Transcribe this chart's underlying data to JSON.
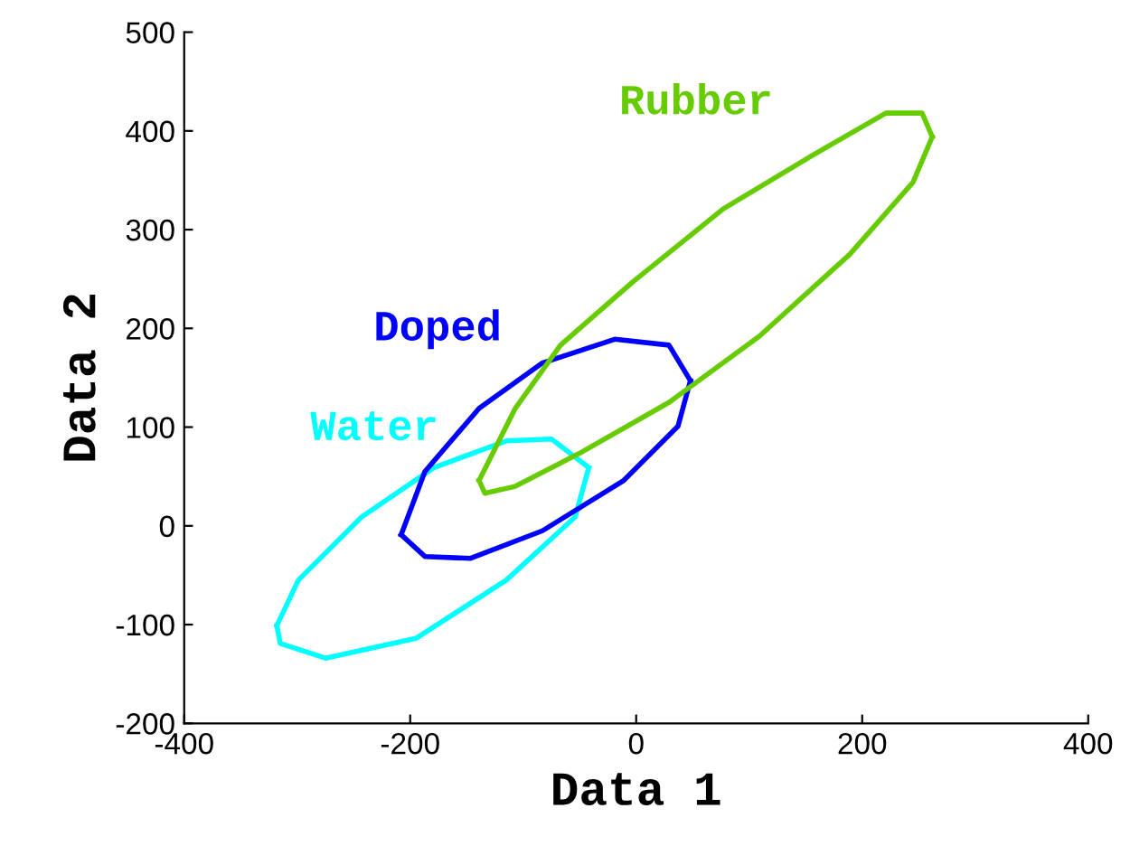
{
  "chart_data": {
    "type": "line",
    "xlabel": "Data 1",
    "ylabel": "Data 2",
    "xlim": [
      -400,
      400
    ],
    "ylim": [
      -200,
      500
    ],
    "xticks": [
      -400,
      -200,
      0,
      200,
      400
    ],
    "yticks": [
      -200,
      -100,
      0,
      100,
      200,
      300,
      400,
      500
    ],
    "grid": false,
    "legend": false,
    "marker": "none",
    "line_style": "solid",
    "series": [
      {
        "name": "Water",
        "color": "#00ffff",
        "x": [
          -318,
          -299,
          -243,
          -179,
          -115,
          -75,
          -42
        ],
        "values": [
          -101,
          -55,
          9,
          59,
          86,
          88,
          59
        ]
      },
      {
        "color": "#00ffff",
        "x": [
          -318,
          -315,
          -275,
          -195,
          -115,
          -54,
          -42
        ],
        "values": [
          -101,
          -119,
          -134,
          -114,
          -55,
          9,
          59
        ]
      },
      {
        "name": "Doped",
        "color": "#0000ff",
        "x": [
          -208,
          -187,
          -139,
          -83,
          -19,
          29,
          48
        ],
        "values": [
          -9,
          55,
          119,
          165,
          189,
          183,
          147
        ]
      },
      {
        "color": "#0000ff",
        "x": [
          -208,
          -187,
          -147,
          -83,
          -11,
          37,
          48
        ],
        "values": [
          -9,
          -31,
          -33,
          -5,
          46,
          101,
          147
        ]
      },
      {
        "name": "Rubber",
        "color": "#66cc00",
        "x": [
          -139,
          -107,
          -67,
          -3,
          77,
          157,
          221,
          253,
          262
        ],
        "values": [
          46,
          119,
          183,
          247,
          321,
          376,
          418,
          418,
          394
        ]
      },
      {
        "color": "#66cc00",
        "x": [
          -139,
          -134,
          -107,
          -51,
          29,
          109,
          189,
          245,
          262
        ],
        "values": [
          46,
          33,
          40,
          73,
          125,
          192,
          275,
          348,
          394
        ]
      }
    ]
  }
}
